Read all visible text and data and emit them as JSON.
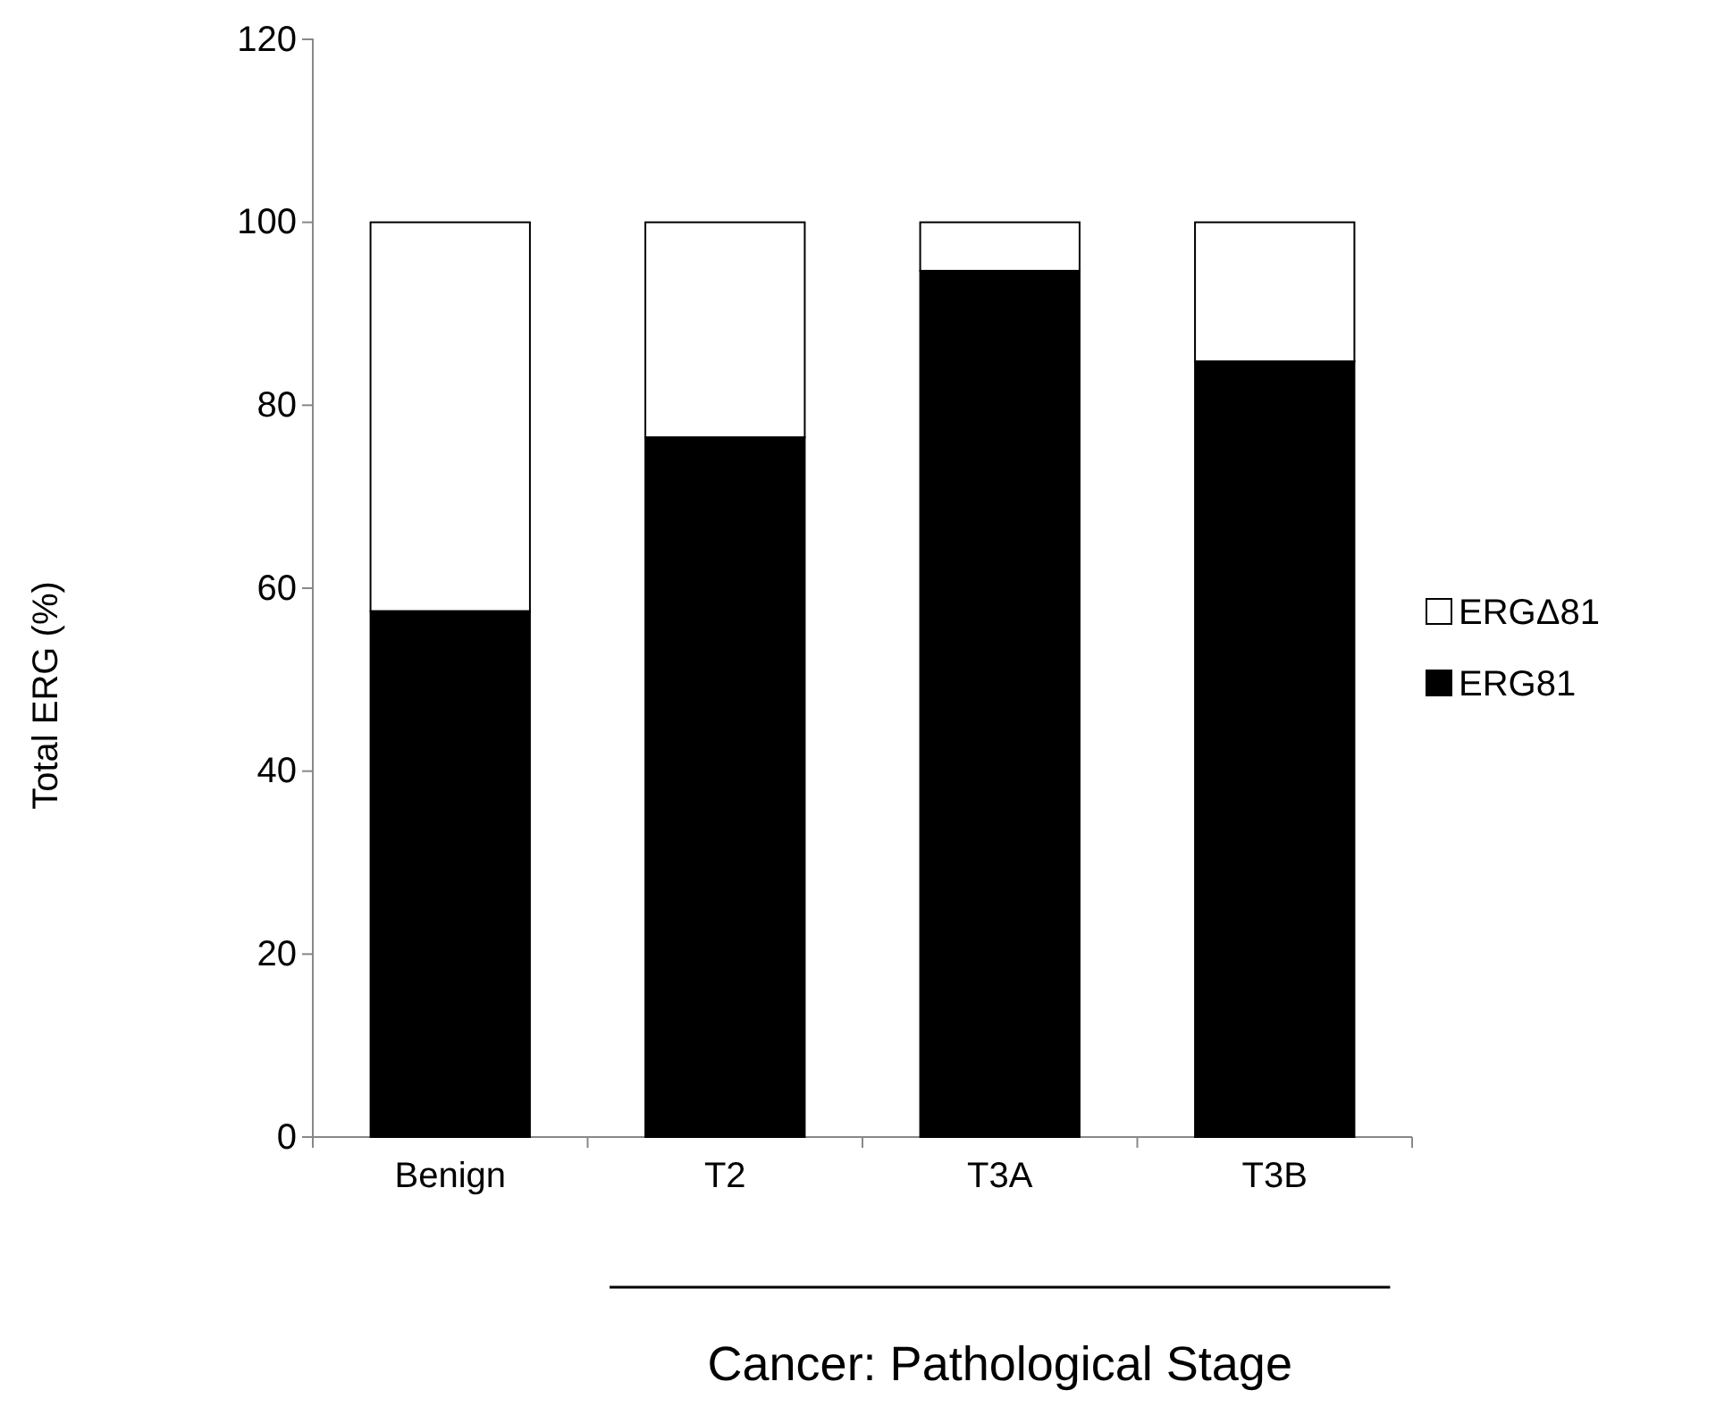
{
  "chart_data": {
    "type": "bar",
    "stacked": true,
    "xlabel": "Cancer: Pathological Stage",
    "ylabel": "Total ERG (%)",
    "categories": [
      "Benign",
      "T2",
      "T3A",
      "T3B"
    ],
    "series": [
      {
        "name": "ERG81",
        "color": "#000000",
        "values": [
          57.5,
          76.5,
          94.7,
          84.8
        ]
      },
      {
        "name": "ERGΔ81",
        "color": "#ffffff",
        "values": [
          42.5,
          23.5,
          5.3,
          15.2
        ]
      }
    ],
    "ylim": [
      0,
      120
    ],
    "yticks": [
      0,
      20,
      40,
      60,
      80,
      100,
      120
    ],
    "grid": false,
    "legend": "right"
  }
}
